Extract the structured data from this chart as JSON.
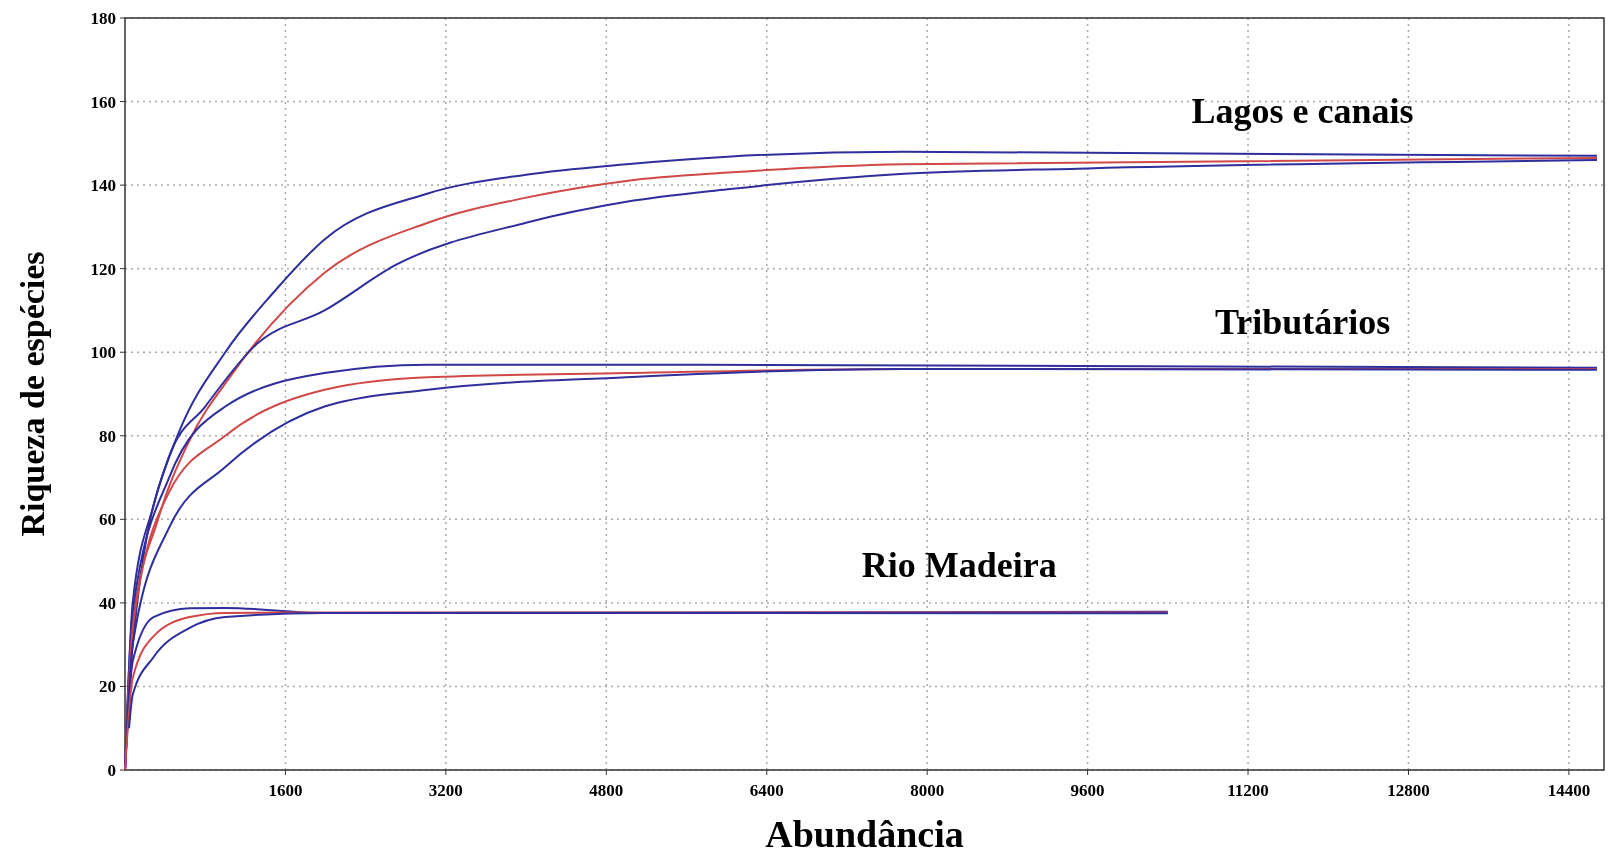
{
  "chart_data": {
    "type": "line",
    "xlabel": "Abundância",
    "ylabel": "Riqueza de espécies",
    "xlim": [
      0,
      14750
    ],
    "ylim": [
      0,
      180
    ],
    "xticks": [
      1600,
      3200,
      4800,
      6400,
      8000,
      9600,
      11200,
      12800,
      14400
    ],
    "yticks": [
      0,
      20,
      40,
      60,
      80,
      100,
      120,
      140,
      160,
      180
    ],
    "grid": true,
    "line_style": "solid",
    "marker": "none",
    "series": [
      {
        "color": "#2e2e9c",
        "x": [
          0,
          77,
          280,
          540,
          1000,
          1470,
          1990,
          3020,
          4000,
          5000,
          6010,
          7770,
          14680
        ],
        "values": [
          0,
          40,
          63,
          81,
          100,
          114,
          127,
          138,
          142.5,
          145,
          146.8,
          148,
          147
        ]
      },
      {
        "name": "Lagos e canais",
        "color": "#d04848",
        "x": [
          0,
          77,
          330,
          645,
          1060,
          1990,
          3020,
          4000,
          5000,
          6010,
          7770,
          14680
        ],
        "values": [
          0,
          35,
          60,
          79,
          94.5,
          119,
          131,
          137,
          141,
          143,
          145,
          146.5
        ]
      },
      {
        "color": "#2e2e9c",
        "x": [
          0,
          77,
          440,
          800,
          1316,
          1990,
          2710,
          4000,
          5000,
          6010,
          7770,
          9600,
          14680
        ],
        "values": [
          0,
          30,
          75,
          87,
          102,
          110,
          121,
          131,
          136,
          139,
          142.7,
          144,
          146
        ]
      },
      {
        "color": "#2e2e9c",
        "x": [
          0,
          77,
          440,
          1000,
          1990,
          3020,
          5000,
          14680
        ],
        "values": [
          0,
          38,
          70,
          87,
          95,
          97,
          97,
          96.3
        ]
      },
      {
        "name": "Tributários",
        "color": "#d04848",
        "x": [
          0,
          77,
          440,
          1000,
          1990,
          3020,
          5000,
          7770,
          14680
        ],
        "values": [
          0,
          34,
          66.5,
          80,
          91,
          94,
          95,
          96,
          96
        ]
      },
      {
        "color": "#2e2e9c",
        "x": [
          0,
          77,
          440,
          1000,
          1990,
          3020,
          5000,
          7770,
          14680
        ],
        "values": [
          0,
          30,
          58,
          72.5,
          87,
          91,
          94,
          96,
          95.8
        ]
      },
      {
        "color": "#2e2e9c",
        "x": [
          0,
          77,
          284,
          645,
          1000,
          1990,
          10400
        ],
        "values": [
          0,
          26,
          36.6,
          38.7,
          38.8,
          37.6,
          37.9
        ]
      },
      {
        "name": "Rio Madeira",
        "color": "#d04848",
        "x": [
          0,
          77,
          284,
          645,
          1000,
          1990,
          10400
        ],
        "values": [
          0,
          22,
          32,
          36.6,
          37.6,
          37.7,
          37.7
        ]
      },
      {
        "color": "#2e2e9c",
        "x": [
          40,
          77,
          284,
          645,
          1000,
          1990,
          10400
        ],
        "values": [
          10,
          18,
          27,
          34,
          36.6,
          37.6,
          37.5
        ]
      }
    ]
  }
}
